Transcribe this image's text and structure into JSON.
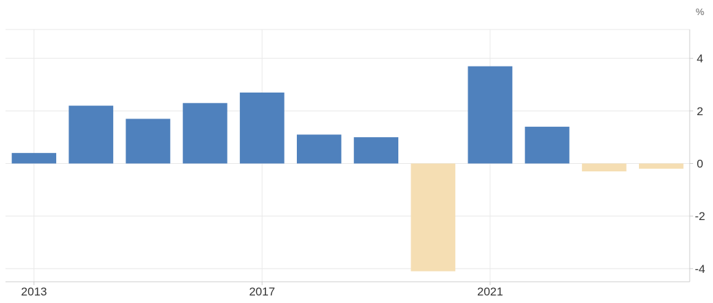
{
  "chart_data": {
    "type": "bar",
    "x": [
      2013,
      2014,
      2015,
      2016,
      2017,
      2018,
      2019,
      2020,
      2021,
      2022,
      2023,
      2024
    ],
    "values": [
      0.4,
      2.2,
      1.7,
      2.3,
      2.7,
      1.1,
      1.0,
      -4.1,
      3.7,
      1.4,
      -0.3,
      -0.2
    ],
    "x_tick_labels": [
      "2013",
      "2017",
      "2021"
    ],
    "y_tick_values": [
      4,
      2,
      0,
      -2,
      -4
    ],
    "y_tick_labels": [
      "4",
      "2",
      "0",
      "-2",
      "-4"
    ],
    "unit": "%",
    "ylim": [
      -4.5,
      5.1
    ],
    "grid": true,
    "y_axis_position": "right",
    "colors": {
      "positive": "#4f81bd",
      "negative": "#f5deb3",
      "grid": "#e8e8e8",
      "axis": "#cccccc"
    }
  }
}
